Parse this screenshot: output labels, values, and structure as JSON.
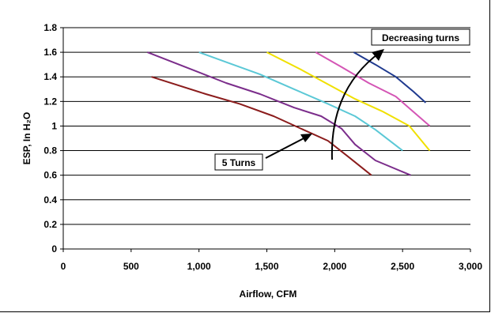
{
  "chart_data": {
    "type": "line",
    "title": "",
    "xlabel": "Airflow, CFM",
    "ylabel": "ESP, In H₂O",
    "xlim": [
      0,
      3000
    ],
    "ylim": [
      0,
      1.8
    ],
    "x_ticks": [
      "0",
      "500",
      "1,000",
      "1,500",
      "2,000",
      "2,500",
      "3,000"
    ],
    "y_ticks": [
      "0",
      "0.2",
      "0.4",
      "0.6",
      "0.8",
      "1",
      "1.2",
      "1.4",
      "1.6",
      "1.8"
    ],
    "grid": "horizontal",
    "series": [
      {
        "color": "#8b1c1c",
        "points": [
          [
            650,
            1.4
          ],
          [
            1050,
            1.26
          ],
          [
            1300,
            1.18
          ],
          [
            1550,
            1.08
          ],
          [
            1750,
            0.98
          ],
          [
            1950,
            0.88
          ],
          [
            2100,
            0.75
          ],
          [
            2270,
            0.6
          ]
        ]
      },
      {
        "color": "#7b2d8b",
        "points": [
          [
            620,
            1.6
          ],
          [
            900,
            1.48
          ],
          [
            1200,
            1.35
          ],
          [
            1450,
            1.26
          ],
          [
            1700,
            1.15
          ],
          [
            1900,
            1.08
          ],
          [
            2050,
            0.98
          ],
          [
            2150,
            0.85
          ],
          [
            2300,
            0.72
          ],
          [
            2560,
            0.6
          ]
        ]
      },
      {
        "color": "#5bc8d6",
        "points": [
          [
            1000,
            1.6
          ],
          [
            1200,
            1.52
          ],
          [
            1450,
            1.42
          ],
          [
            1700,
            1.3
          ],
          [
            1950,
            1.18
          ],
          [
            2150,
            1.08
          ],
          [
            2300,
            0.97
          ],
          [
            2500,
            0.8
          ]
        ]
      },
      {
        "color": "#f0e000",
        "points": [
          [
            1500,
            1.6
          ],
          [
            1750,
            1.46
          ],
          [
            1950,
            1.34
          ],
          [
            2150,
            1.22
          ],
          [
            2350,
            1.12
          ],
          [
            2550,
            1.0
          ],
          [
            2700,
            0.8
          ]
        ]
      },
      {
        "color": "#d455b5",
        "points": [
          [
            1860,
            1.6
          ],
          [
            2050,
            1.48
          ],
          [
            2250,
            1.35
          ],
          [
            2450,
            1.24
          ],
          [
            2700,
            1.0
          ]
        ]
      },
      {
        "color": "#1f3a8f",
        "points": [
          [
            2140,
            1.6
          ],
          [
            2300,
            1.5
          ],
          [
            2450,
            1.4
          ],
          [
            2580,
            1.28
          ],
          [
            2670,
            1.19
          ]
        ]
      }
    ],
    "annotations": [
      {
        "text": "Decreasing turns",
        "box": true
      },
      {
        "text": "5 Turns",
        "box": true
      }
    ]
  }
}
